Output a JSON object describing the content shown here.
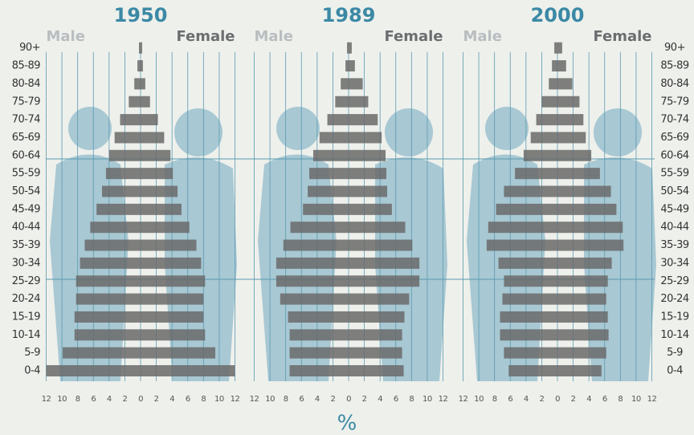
{
  "chart_data": {
    "type": "pyramid",
    "x_label": "%",
    "categories": [
      "0-4",
      "5-9",
      "10-14",
      "15-19",
      "20-24",
      "25-29",
      "30-34",
      "35-39",
      "40-44",
      "45-49",
      "50-54",
      "55-59",
      "60-64",
      "65-69",
      "70-74",
      "75-79",
      "80-84",
      "85-89",
      "90+"
    ],
    "xlim": [
      0,
      12
    ],
    "xticks": [
      0,
      2,
      4,
      6,
      8,
      10,
      12
    ],
    "grid": true,
    "panels": [
      {
        "title": "1950",
        "series": [
          {
            "name": "Male",
            "color": "#6a6a6a",
            "values": [
              12,
              9.9,
              8.4,
              8.4,
              8.2,
              8.2,
              7.7,
              7.1,
              6.4,
              5.6,
              4.9,
              4.4,
              4.0,
              3.3,
              2.6,
              1.5,
              0.8,
              0.4,
              0.2
            ]
          },
          {
            "name": "Female",
            "color": "#6a6a6a",
            "values": [
              12,
              9.5,
              8.2,
              8.0,
              8.0,
              8.2,
              7.7,
              7.1,
              6.2,
              5.2,
              4.7,
              4.1,
              3.8,
              3.0,
              2.2,
              1.2,
              0.6,
              0.3,
              0.2
            ]
          }
        ]
      },
      {
        "title": "1989",
        "series": [
          {
            "name": "Male",
            "color": "#6a6a6a",
            "values": [
              7.5,
              7.5,
              7.5,
              7.7,
              8.7,
              9.2,
              9.2,
              8.3,
              7.4,
              5.8,
              5.2,
              5.0,
              4.5,
              3.7,
              2.7,
              1.7,
              1.0,
              0.4,
              0.2
            ]
          },
          {
            "name": "Female",
            "color": "#6a6a6a",
            "values": [
              7.0,
              6.8,
              6.8,
              7.1,
              7.7,
              9.0,
              9.0,
              8.1,
              7.2,
              5.5,
              4.9,
              4.8,
              4.7,
              4.2,
              3.7,
              2.5,
              1.8,
              0.8,
              0.4
            ]
          }
        ]
      },
      {
        "title": "2000",
        "series": [
          {
            "name": "Male",
            "color": "#6a6a6a",
            "values": [
              6.2,
              6.8,
              7.3,
              7.3,
              7.0,
              6.8,
              7.5,
              9.0,
              8.8,
              7.8,
              6.8,
              5.4,
              4.3,
              3.4,
              2.7,
              2.0,
              1.1,
              0.7,
              0.4
            ]
          },
          {
            "name": "Female",
            "color": "#6a6a6a",
            "values": [
              5.6,
              6.2,
              6.5,
              6.4,
              6.2,
              6.4,
              6.9,
              8.4,
              8.3,
              7.5,
              6.8,
              5.4,
              4.3,
              3.6,
              3.3,
              2.8,
              1.9,
              1.1,
              0.6
            ]
          }
        ]
      }
    ]
  }
}
